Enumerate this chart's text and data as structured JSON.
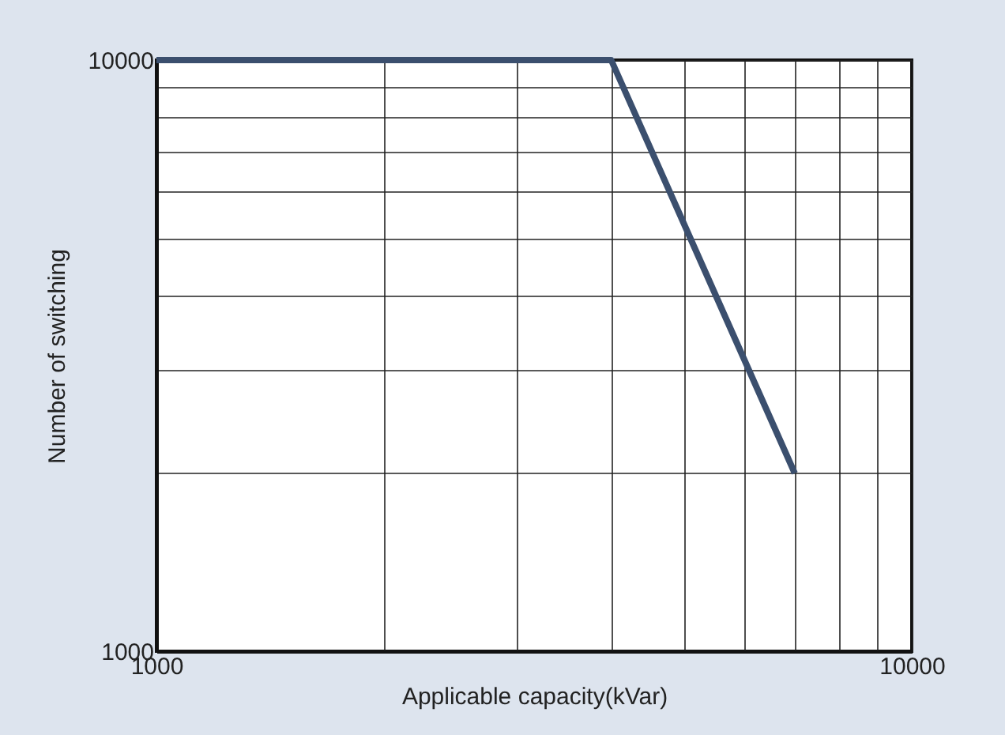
{
  "chart_data": {
    "type": "line",
    "xlabel": "Applicable capacity(kVar)",
    "ylabel": "Number of switching",
    "x": [
      1000,
      4000,
      7000
    ],
    "series": [
      {
        "color": "#3b4f6e",
        "values": [
          10000,
          10000,
          2000
        ]
      }
    ],
    "log": "xy",
    "grid": true,
    "marker": "none",
    "line_style": "solid",
    "xlim": [
      1000,
      10000
    ],
    "ylim": [
      1000,
      10000
    ],
    "xticks": [
      1000,
      {
        "value": 2000,
        "label": null
      },
      {
        "value": 3000,
        "label": null
      },
      {
        "value": 4000,
        "label": null
      },
      {
        "value": 5000,
        "label": null
      },
      {
        "value": 6000,
        "label": null
      },
      {
        "value": 7000,
        "label": null
      },
      {
        "value": 8000,
        "label": null
      },
      {
        "value": 9000,
        "label": null
      },
      10000
    ],
    "yticks": [
      1000,
      {
        "value": 2000,
        "label": null
      },
      {
        "value": 3000,
        "label": null
      },
      {
        "value": 4000,
        "label": null
      },
      {
        "value": 5000,
        "label": null
      },
      {
        "value": 6000,
        "label": null
      },
      {
        "value": 7000,
        "label": null
      },
      {
        "value": 8000,
        "label": null
      },
      {
        "value": 9000,
        "label": null
      },
      10000
    ]
  }
}
